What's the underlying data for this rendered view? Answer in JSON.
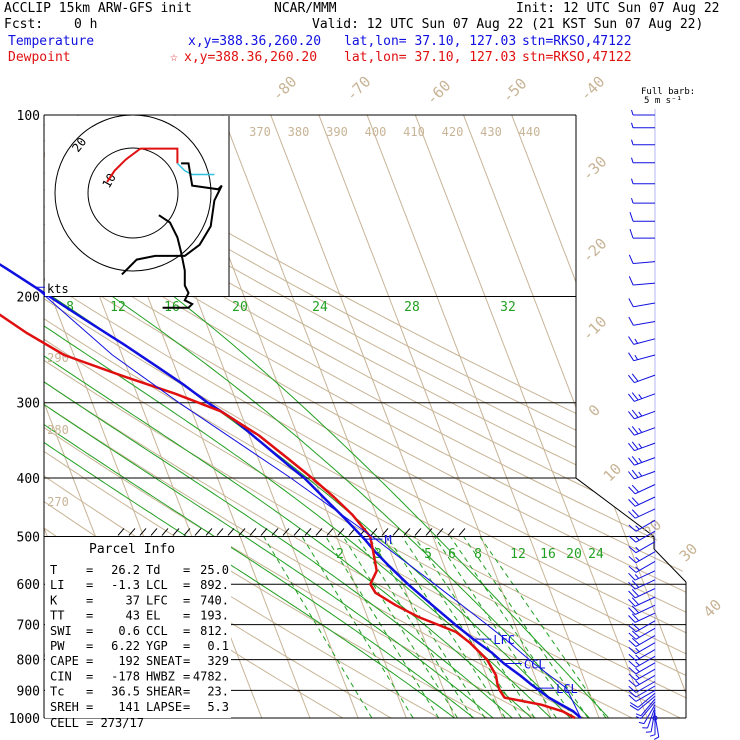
{
  "header": {
    "model_line": "ACCLIP 15km ARW-GFS init",
    "center": "NCAR/MMM",
    "init": "Init: 12 UTC Sun 07 Aug 22",
    "fcst_label": "Fcst:",
    "fcst_value": "0 h",
    "valid": "Valid: 12 UTC Sun 07 Aug 22 (21 KST Sun 07 Aug 22)",
    "temp_label": "Temperature",
    "temp_xy": "x,y=388.36,260.20",
    "temp_latlon": "lat,lon= 37.10, 127.03",
    "temp_stn": "stn=RKSO,47122",
    "dew_label": "Dewpoint",
    "dew_star": "☆",
    "dew_xy": "x,y=388.36,260.20",
    "dew_latlon": "lat,lon= 37.10, 127.03",
    "dew_stn": "stn=RKSO,47122"
  },
  "barb_legend": {
    "line1": "Full barb:",
    "line2": "5 m s⁻¹"
  },
  "hodograph": {
    "ring_labels": [
      "20",
      "10"
    ],
    "units": "kts"
  },
  "parcel": {
    "title": "Parcel Info",
    "rows": [
      {
        "k1": "T",
        "v1": "26.2",
        "k2": "Td",
        "v2": "25.0"
      },
      {
        "k1": "LI",
        "v1": "-1.3",
        "k2": "LCL",
        "v2": "892."
      },
      {
        "k1": "K",
        "v1": "37",
        "k2": "LFC",
        "v2": "740."
      },
      {
        "k1": "TT",
        "v1": "43",
        "k2": "EL",
        "v2": "193."
      },
      {
        "k1": "SWI",
        "v1": "0.6",
        "k2": "CCL",
        "v2": "812."
      },
      {
        "k1": "PW",
        "v1": "6.22",
        "k2": "YGP",
        "v2": "0.1"
      },
      {
        "k1": "CAPE",
        "v1": "192",
        "k2": "SNEAT",
        "v2": "329"
      },
      {
        "k1": "CIN",
        "v1": "-178",
        "k2": "HWBZ",
        "v2": "4782."
      },
      {
        "k1": "Tc",
        "v1": "36.5",
        "k2": "SHEAR",
        "v2": "23."
      },
      {
        "k1": "SREH",
        "v1": "141",
        "k2": "LAPSE",
        "v2": "5.3"
      }
    ],
    "cell": "CELL = 273/17"
  },
  "chart_data": {
    "type": "line",
    "subtype": "skew-T log-p sounding",
    "y_axis": {
      "quantity": "pressure",
      "units": "hPa",
      "log_scale": true,
      "range": [
        1000,
        100
      ],
      "tick_labels": [
        "100",
        "200",
        "300",
        "400",
        "500",
        "600",
        "700",
        "800",
        "900",
        "1000"
      ]
    },
    "isotherm_labels": [
      "-80",
      "-70",
      "-60",
      "-50",
      "-40",
      "-30",
      "-20",
      "-10",
      "0",
      "10",
      "20",
      "30",
      "40"
    ],
    "isotherm_values": [
      -80,
      -70,
      -60,
      -50,
      -40,
      -30,
      -20,
      -10,
      0,
      10,
      20,
      30,
      40
    ],
    "theta_labels": [
      "370",
      "380",
      "390",
      "400",
      "410",
      "420",
      "430",
      "440"
    ],
    "theta_left_labels": [
      "290",
      "280",
      "270"
    ],
    "mixing_ratio_upper": [
      "8",
      "12",
      "16",
      "20",
      "24",
      "28",
      "32"
    ],
    "mixing_ratio_lower": [
      "2",
      "3",
      "4",
      "5",
      "6",
      "8",
      "12",
      "16",
      "20",
      "24"
    ],
    "levels": [
      {
        "label": "EL",
        "p": 193
      },
      {
        "label": "M",
        "p": 505
      },
      {
        "label": "LFC",
        "p": 740
      },
      {
        "label": "CCL",
        "p": 812
      },
      {
        "label": "LCL",
        "p": 892
      }
    ],
    "series": [
      {
        "name": "Temperature",
        "color": "#1010e0",
        "points": [
          [
            1000,
            26.2
          ],
          [
            975,
            25.2
          ],
          [
            950,
            23.2
          ],
          [
            925,
            21.2
          ],
          [
            900,
            19.8
          ],
          [
            880,
            18.6
          ],
          [
            850,
            17.0
          ],
          [
            812,
            14.6
          ],
          [
            780,
            13.0
          ],
          [
            740,
            10.2
          ],
          [
            700,
            7.6
          ],
          [
            650,
            4.4
          ],
          [
            600,
            1.0
          ],
          [
            560,
            -1.4
          ],
          [
            530,
            -3.2
          ],
          [
            505,
            -4.4
          ],
          [
            470,
            -6.6
          ],
          [
            430,
            -9.6
          ],
          [
            400,
            -12.0
          ],
          [
            380,
            -14.4
          ],
          [
            350,
            -18.0
          ],
          [
            320,
            -22.0
          ],
          [
            300,
            -26.0
          ],
          [
            280,
            -29.6
          ],
          [
            260,
            -34.0
          ],
          [
            240,
            -38.8
          ],
          [
            220,
            -44.4
          ],
          [
            200,
            -50.4
          ],
          [
            193,
            -52.6
          ],
          [
            180,
            -57.0
          ],
          [
            165,
            -62.8
          ],
          [
            150,
            -68.6
          ],
          [
            140,
            -72.6
          ],
          [
            125,
            -74.4
          ],
          [
            112,
            -73.2
          ],
          [
            104,
            -71.6
          ],
          [
            100,
            -70.8
          ]
        ]
      },
      {
        "name": "Dewpoint",
        "color": "#e01010",
        "points": [
          [
            1000,
            25.0
          ],
          [
            975,
            23.0
          ],
          [
            950,
            19.0
          ],
          [
            925,
            12.0
          ],
          [
            900,
            11.6
          ],
          [
            880,
            11.6
          ],
          [
            850,
            12.0
          ],
          [
            800,
            11.4
          ],
          [
            750,
            9.2
          ],
          [
            720,
            7.2
          ],
          [
            700,
            4.0
          ],
          [
            680,
            0.6
          ],
          [
            650,
            -3.2
          ],
          [
            620,
            -6.4
          ],
          [
            600,
            -6.8
          ],
          [
            570,
            -4.4
          ],
          [
            530,
            -3.6
          ],
          [
            500,
            -3.0
          ],
          [
            460,
            -5.0
          ],
          [
            430,
            -7.4
          ],
          [
            400,
            -10.4
          ],
          [
            370,
            -14.0
          ],
          [
            340,
            -18.0
          ],
          [
            310,
            -24.0
          ],
          [
            290,
            -32.0
          ],
          [
            270,
            -42.0
          ],
          [
            250,
            -52.0
          ],
          [
            230,
            -58.0
          ],
          [
            210,
            -63.4
          ],
          [
            200,
            -65.6
          ],
          [
            180,
            -71.0
          ],
          [
            160,
            -78.4
          ],
          [
            145,
            -83.6
          ],
          [
            130,
            -87.0
          ],
          [
            118,
            -86.4
          ],
          [
            108,
            -84.0
          ],
          [
            100,
            -82.6
          ]
        ]
      }
    ],
    "parcel_path": {
      "color": "#1010e0",
      "points": [
        [
          1000,
          26.2
        ],
        [
          892,
          25.6
        ],
        [
          812,
          20.8
        ],
        [
          740,
          16.8
        ],
        [
          700,
          14.2
        ],
        [
          600,
          6.6
        ],
        [
          500,
          -2.6
        ],
        [
          400,
          -14.8
        ],
        [
          300,
          -32.0
        ],
        [
          250,
          -42.0
        ],
        [
          193,
          -52.6
        ]
      ]
    },
    "wind_barbs": [
      {
        "p": 1000,
        "speed": 0,
        "dir": 0
      },
      {
        "p": 990,
        "speed": 2.5,
        "dir": 170
      },
      {
        "p": 980,
        "speed": 2.5,
        "dir": 180
      },
      {
        "p": 970,
        "speed": 2.5,
        "dir": 190
      },
      {
        "p": 960,
        "speed": 2.5,
        "dir": 200
      },
      {
        "p": 950,
        "speed": 2.5,
        "dir": 210
      },
      {
        "p": 940,
        "speed": 2.5,
        "dir": 220
      },
      {
        "p": 930,
        "speed": 2.5,
        "dir": 220
      },
      {
        "p": 920,
        "speed": 5,
        "dir": 230
      },
      {
        "p": 910,
        "speed": 5,
        "dir": 230
      },
      {
        "p": 900,
        "speed": 5,
        "dir": 240
      },
      {
        "p": 885,
        "speed": 5,
        "dir": 240
      },
      {
        "p": 870,
        "speed": 5,
        "dir": 240
      },
      {
        "p": 850,
        "speed": 7.5,
        "dir": 240
      },
      {
        "p": 830,
        "speed": 7.5,
        "dir": 240
      },
      {
        "p": 810,
        "speed": 7.5,
        "dir": 240
      },
      {
        "p": 790,
        "speed": 7.5,
        "dir": 240
      },
      {
        "p": 770,
        "speed": 7.5,
        "dir": 240
      },
      {
        "p": 750,
        "speed": 7.5,
        "dir": 240
      },
      {
        "p": 730,
        "speed": 10,
        "dir": 240
      },
      {
        "p": 710,
        "speed": 10,
        "dir": 240
      },
      {
        "p": 690,
        "speed": 10,
        "dir": 240
      },
      {
        "p": 670,
        "speed": 10,
        "dir": 245
      },
      {
        "p": 650,
        "speed": 10,
        "dir": 245
      },
      {
        "p": 630,
        "speed": 10,
        "dir": 245
      },
      {
        "p": 610,
        "speed": 10,
        "dir": 245
      },
      {
        "p": 590,
        "speed": 10,
        "dir": 245
      },
      {
        "p": 570,
        "speed": 7.5,
        "dir": 245
      },
      {
        "p": 550,
        "speed": 7.5,
        "dir": 240
      },
      {
        "p": 530,
        "speed": 7.5,
        "dir": 240
      },
      {
        "p": 510,
        "speed": 7.5,
        "dir": 240
      },
      {
        "p": 490,
        "speed": 7.5,
        "dir": 240
      },
      {
        "p": 470,
        "speed": 7.5,
        "dir": 240
      },
      {
        "p": 450,
        "speed": 10,
        "dir": 245
      },
      {
        "p": 430,
        "speed": 10,
        "dir": 245
      },
      {
        "p": 410,
        "speed": 10,
        "dir": 245
      },
      {
        "p": 390,
        "speed": 12.5,
        "dir": 250
      },
      {
        "p": 370,
        "speed": 12.5,
        "dir": 250
      },
      {
        "p": 350,
        "speed": 12.5,
        "dir": 250
      },
      {
        "p": 330,
        "speed": 12.5,
        "dir": 250
      },
      {
        "p": 310,
        "speed": 12.5,
        "dir": 250
      },
      {
        "p": 290,
        "speed": 12.5,
        "dir": 250
      },
      {
        "p": 270,
        "speed": 10,
        "dir": 250
      },
      {
        "p": 250,
        "speed": 7.5,
        "dir": 255
      },
      {
        "p": 235,
        "speed": 7.5,
        "dir": 255
      },
      {
        "p": 220,
        "speed": 5,
        "dir": 260
      },
      {
        "p": 205,
        "speed": 5,
        "dir": 260
      },
      {
        "p": 190,
        "speed": 5,
        "dir": 265
      },
      {
        "p": 175,
        "speed": 5,
        "dir": 265
      },
      {
        "p": 160,
        "speed": 5,
        "dir": 270
      },
      {
        "p": 150,
        "speed": 5,
        "dir": 270
      },
      {
        "p": 140,
        "speed": 2.5,
        "dir": 270
      },
      {
        "p": 130,
        "speed": 2.5,
        "dir": 270
      },
      {
        "p": 120,
        "speed": 2.5,
        "dir": 270
      },
      {
        "p": 112,
        "speed": 2.5,
        "dir": 270
      },
      {
        "p": 105,
        "speed": 2.5,
        "dir": 270
      },
      {
        "p": 100,
        "speed": 2.5,
        "dir": 270
      }
    ],
    "hodograph_trace": [
      [
        7,
        6
      ],
      [
        10,
        8
      ],
      [
        12,
        12
      ],
      [
        13,
        16
      ],
      [
        14,
        21
      ],
      [
        14,
        25
      ],
      [
        15,
        27
      ],
      [
        14,
        29
      ],
      [
        16,
        30
      ],
      [
        15,
        31
      ],
      [
        8,
        31
      ],
      [
        0,
        28
      ],
      [
        -3,
        24
      ],
      [
        -6,
        21
      ],
      [
        -9,
        18
      ],
      [
        -12,
        16
      ],
      [
        -13,
        13
      ],
      [
        -14,
        9
      ],
      [
        -15,
        7
      ]
    ],
    "hodograph_cyan": [
      [
        -15,
        7
      ],
      [
        -17,
        6
      ],
      [
        -19,
        6
      ],
      [
        -22,
        5
      ]
    ]
  }
}
